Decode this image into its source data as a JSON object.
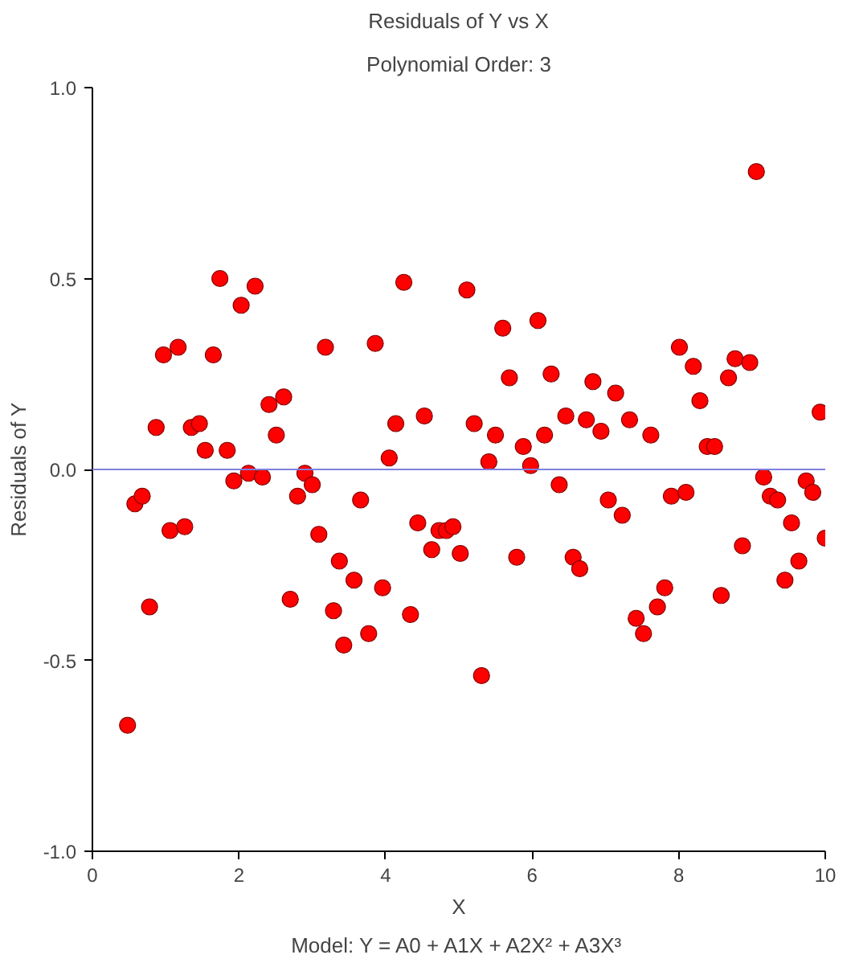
{
  "chart_data": {
    "type": "scatter",
    "title": "Residuals of Y vs X",
    "subtitle": "Polynomial Order: 3",
    "xlabel": "X",
    "ylabel": "Residuals of Y",
    "annotations": [
      "Model: Y = A0 + A1X + A2X² + A3X³"
    ],
    "xlim": [
      0,
      10
    ],
    "ylim": [
      -1.0,
      1.0
    ],
    "xticks": [
      0,
      2,
      4,
      6,
      8,
      10
    ],
    "yticks": [
      {
        "value": -1.0,
        "label": "-1.0"
      },
      {
        "value": -0.5,
        "label": "-0.5"
      },
      {
        "value": 0.0,
        "label": "0.0"
      },
      {
        "value": 0.5,
        "label": "0.5"
      },
      {
        "value": 1.0,
        "label": "1.0"
      }
    ],
    "grid": false,
    "marker": "circle",
    "ref_lines": [
      {
        "axis": "y",
        "value": 0,
        "color": "#7f7fdf"
      }
    ],
    "series": [
      {
        "color": "#ff0000",
        "x": [
          0.48,
          0.58,
          0.68,
          0.78,
          0.87,
          0.97,
          1.06,
          1.17,
          1.26,
          1.35,
          1.46,
          1.54,
          1.65,
          1.74,
          1.84,
          1.93,
          2.03,
          2.13,
          2.22,
          2.32,
          2.41,
          2.51,
          2.61,
          2.7,
          2.8,
          2.9,
          3.0,
          3.09,
          3.18,
          3.29,
          3.37,
          3.43,
          3.57,
          3.66,
          3.77,
          3.86,
          3.96,
          4.05,
          4.14,
          4.25,
          4.34,
          4.44,
          4.53,
          4.63,
          4.73,
          4.83,
          4.92,
          5.02,
          5.11,
          5.21,
          5.31,
          5.41,
          5.5,
          5.6,
          5.69,
          5.79,
          5.88,
          5.98,
          6.08,
          6.17,
          6.26,
          6.37,
          6.46,
          6.56,
          6.65,
          6.74,
          6.83,
          6.94,
          7.04,
          7.14,
          7.23,
          7.33,
          7.42,
          7.52,
          7.62,
          7.71,
          7.81,
          7.9,
          8.01,
          8.1,
          8.2,
          8.29,
          8.39,
          8.49,
          8.58,
          8.68,
          8.77,
          8.87,
          8.97,
          9.06,
          9.16,
          9.25,
          9.35,
          9.45,
          9.54,
          9.64,
          9.74,
          9.83,
          9.93,
          10.0
        ],
        "values": [
          -0.67,
          -0.09,
          -0.07,
          -0.36,
          0.11,
          0.3,
          -0.16,
          0.32,
          -0.15,
          0.11,
          0.12,
          0.05,
          0.3,
          0.5,
          0.05,
          -0.03,
          0.43,
          -0.01,
          0.48,
          -0.02,
          0.17,
          0.09,
          0.19,
          -0.34,
          -0.07,
          -0.01,
          -0.04,
          -0.17,
          0.32,
          -0.37,
          -0.24,
          -0.46,
          -0.29,
          -0.08,
          -0.43,
          0.33,
          -0.31,
          0.03,
          0.12,
          0.49,
          -0.38,
          -0.14,
          0.14,
          -0.21,
          -0.16,
          -0.16,
          -0.15,
          -0.22,
          0.47,
          0.12,
          -0.54,
          0.02,
          0.09,
          0.37,
          0.24,
          -0.23,
          0.06,
          0.01,
          0.39,
          0.09,
          0.25,
          -0.04,
          0.14,
          -0.23,
          -0.26,
          0.13,
          0.23,
          0.1,
          -0.08,
          0.2,
          -0.12,
          0.13,
          -0.39,
          -0.43,
          0.09,
          -0.36,
          -0.31,
          -0.07,
          0.32,
          -0.06,
          0.27,
          0.18,
          0.06,
          0.06,
          -0.33,
          0.24,
          0.29,
          -0.2,
          0.28,
          0.78,
          -0.02,
          -0.07,
          -0.08,
          -0.29,
          -0.14,
          -0.24,
          -0.03,
          -0.06,
          0.15,
          -0.18
        ]
      }
    ]
  }
}
